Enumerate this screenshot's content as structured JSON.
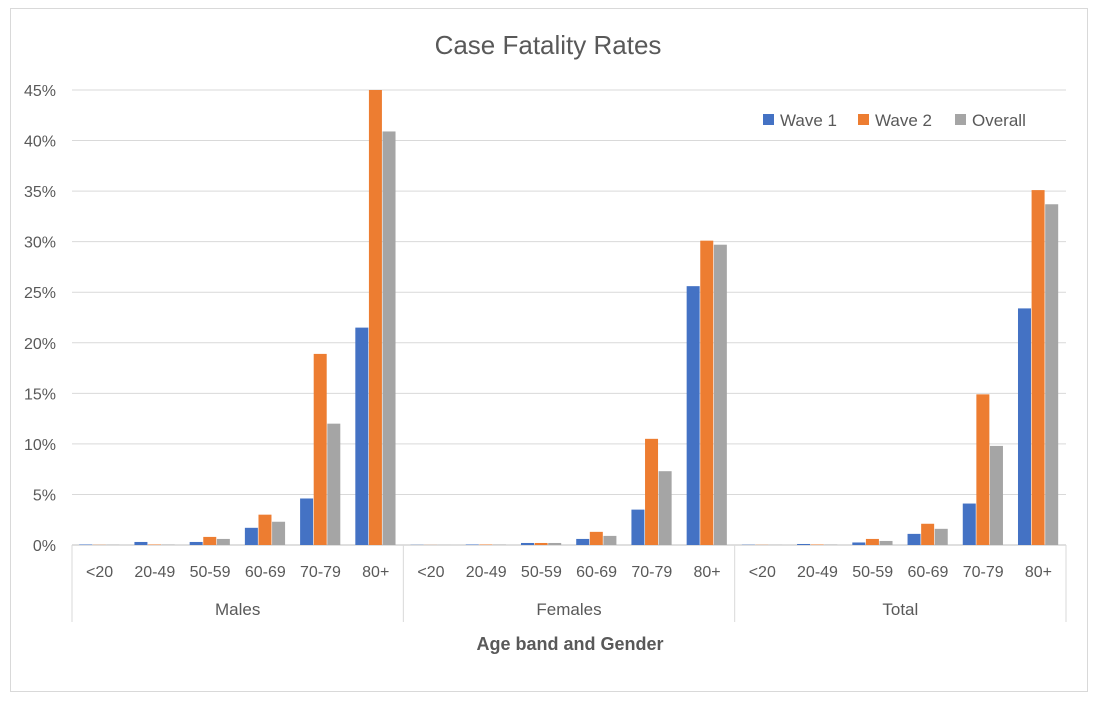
{
  "chart_data": {
    "type": "bar",
    "title": "Case Fatality Rates",
    "xlabel": "Age band and Gender",
    "ylabel": "",
    "ylim": [
      0,
      45
    ],
    "yticks": [
      "0%",
      "5%",
      "10%",
      "15%",
      "20%",
      "25%",
      "30%",
      "35%",
      "40%",
      "45%"
    ],
    "grid": true,
    "legend_position": "top-right",
    "groups": [
      {
        "name": "Males",
        "categories": [
          "<20",
          "20-49",
          "50-59",
          "60-69",
          "70-79",
          "80+"
        ]
      },
      {
        "name": "Females",
        "categories": [
          "<20",
          "20-49",
          "50-59",
          "60-69",
          "70-79",
          "80+"
        ]
      },
      {
        "name": "Total",
        "categories": [
          "<20",
          "20-49",
          "50-59",
          "60-69",
          "70-79",
          "80+"
        ]
      }
    ],
    "series": [
      {
        "name": "Wave 1",
        "color": "#4472C4",
        "values": [
          0.05,
          0.3,
          0.3,
          1.7,
          4.6,
          21.5,
          0.02,
          0.05,
          0.2,
          0.6,
          3.5,
          25.6,
          0.03,
          0.1,
          0.25,
          1.1,
          4.1,
          23.4
        ]
      },
      {
        "name": "Wave 2",
        "color": "#ED7D31",
        "values": [
          0.02,
          0.05,
          0.8,
          3.0,
          18.9,
          45.0,
          0.01,
          0.05,
          0.2,
          1.3,
          10.5,
          30.1,
          0.02,
          0.05,
          0.6,
          2.1,
          14.9,
          35.1
        ]
      },
      {
        "name": "Overall",
        "color": "#A5A5A5",
        "values": [
          0.03,
          0.05,
          0.6,
          2.3,
          12.0,
          40.9,
          0.01,
          0.05,
          0.2,
          0.9,
          7.3,
          29.7,
          0.02,
          0.05,
          0.4,
          1.6,
          9.8,
          33.7
        ]
      }
    ]
  }
}
